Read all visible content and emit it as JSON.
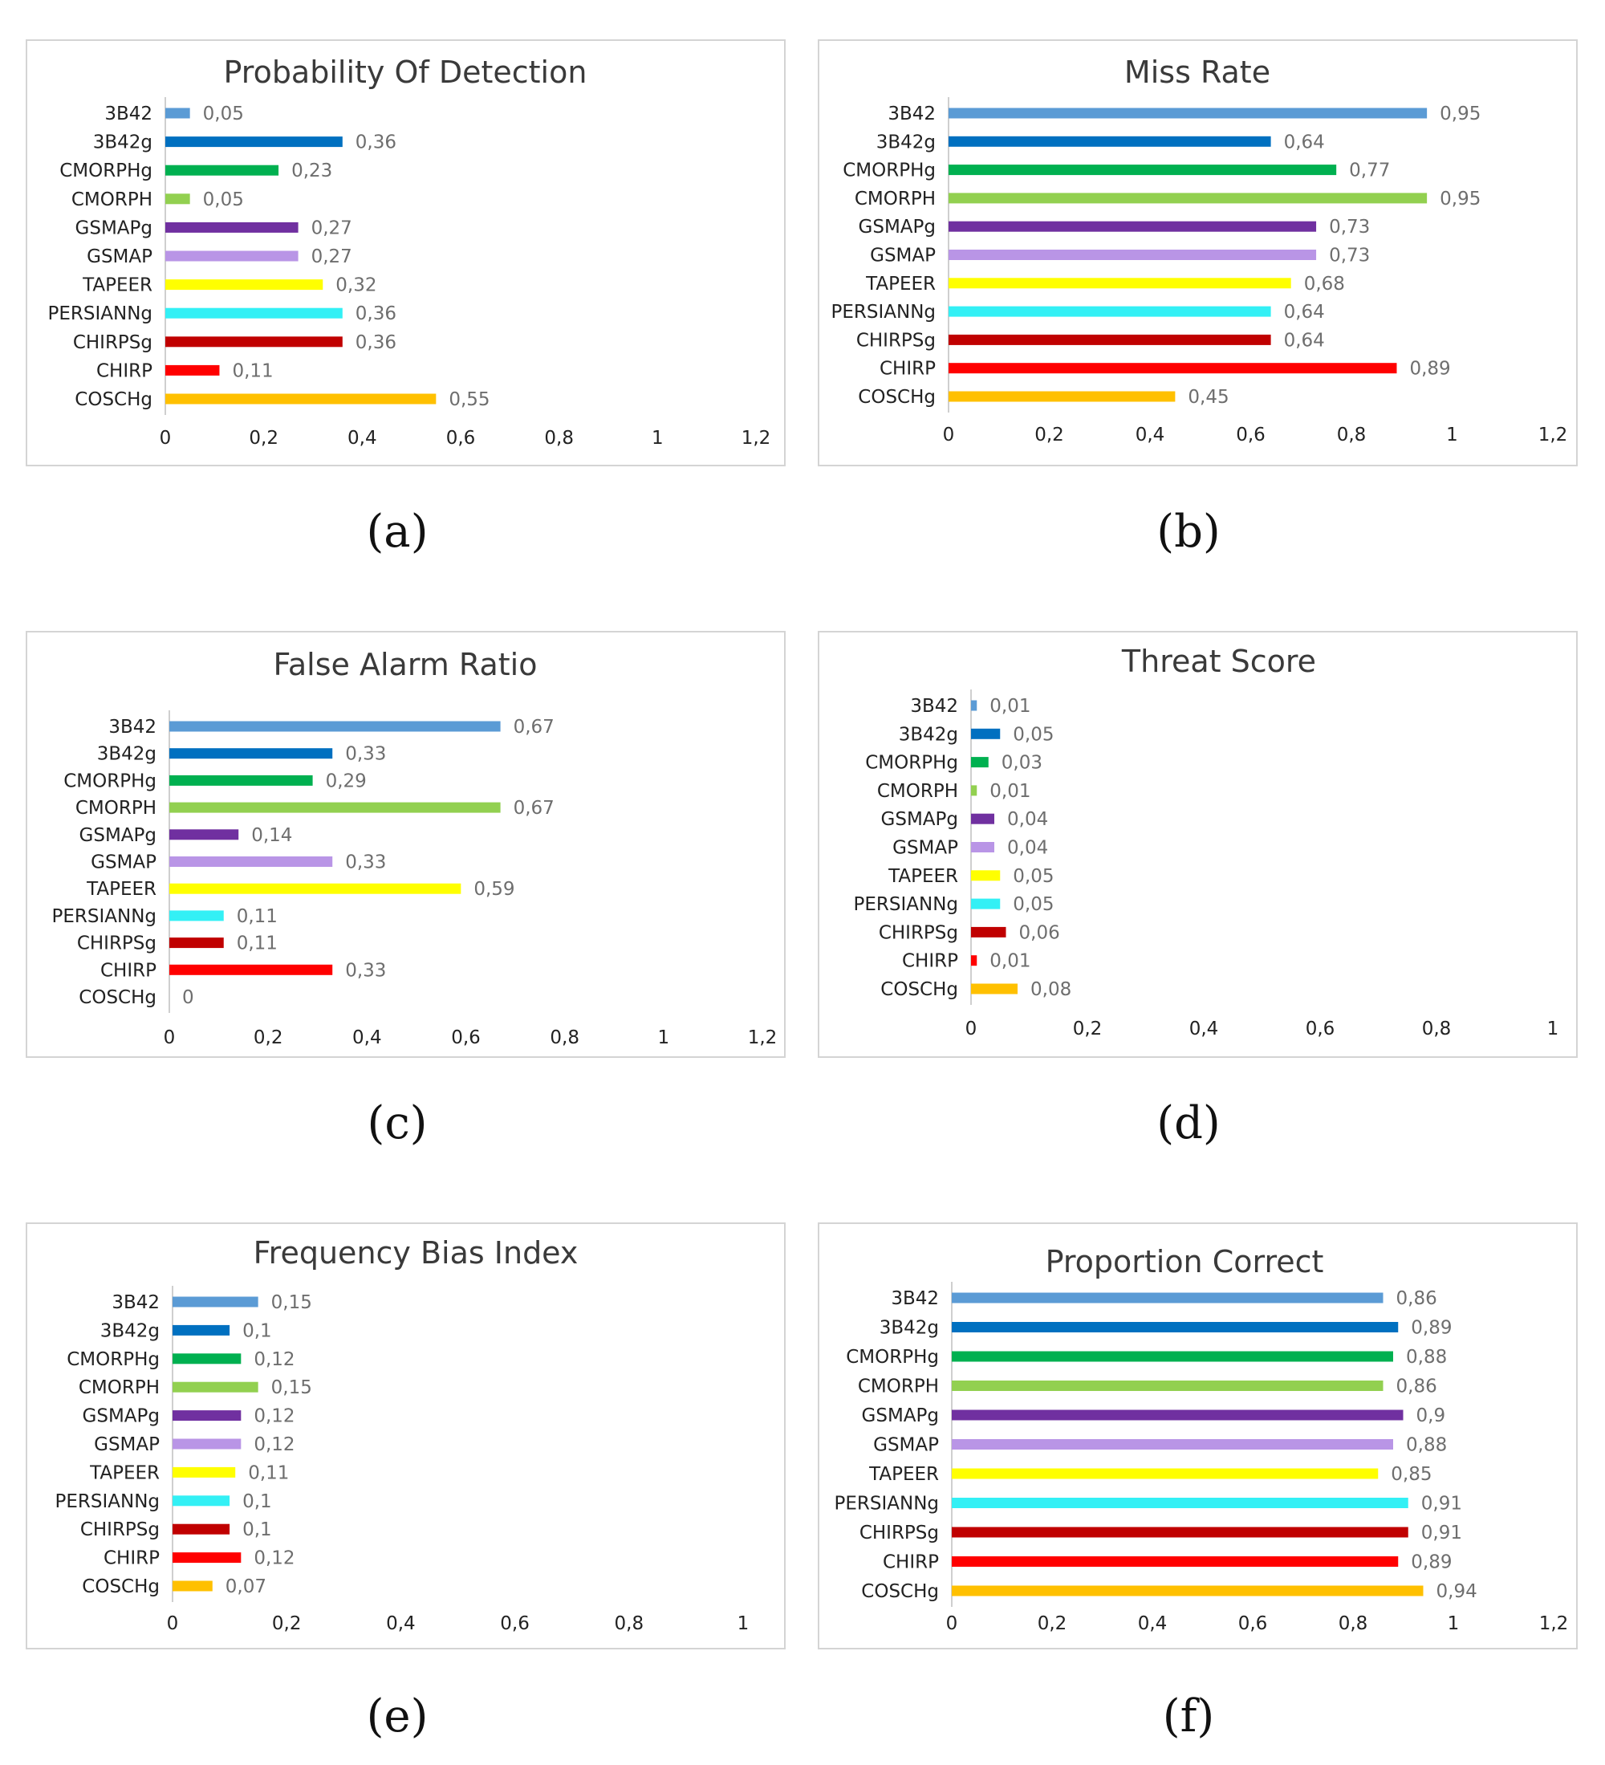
{
  "colors": [
    "#5b9bd5",
    "#0070c0",
    "#00b050",
    "#92d050",
    "#7030a0",
    "#b995e6",
    "#ffff00",
    "#33f0f5",
    "#c00000",
    "#ff0000",
    "#ffc000"
  ],
  "chart_data": [
    {
      "type": "bar",
      "orientation": "horizontal",
      "caption": "(a)",
      "title": "Probability Of Detection",
      "categories": [
        "3B42",
        "3B42g",
        "CMORPHg",
        "CMORPH",
        "GSMAPg",
        "GSMAP",
        "TAPEER",
        "PERSIANNg",
        "CHIRPSg",
        "CHIRP",
        "COSCHg"
      ],
      "values": [
        0.05,
        0.36,
        0.23,
        0.05,
        0.27,
        0.27,
        0.32,
        0.36,
        0.36,
        0.11,
        0.55
      ],
      "value_labels": [
        "0,05",
        "0,36",
        "0,23",
        "0,05",
        "0,27",
        "0,27",
        "0,32",
        "0,36",
        "0,36",
        "0,11",
        "0,55"
      ],
      "xlim": [
        0,
        1.2
      ],
      "ticks": [
        0,
        0.2,
        0.4,
        0.6,
        0.8,
        1,
        1.2
      ],
      "tick_labels": [
        "0",
        "0,2",
        "0,4",
        "0,6",
        "0,8",
        "1",
        "1,2"
      ],
      "grid": false
    },
    {
      "type": "bar",
      "orientation": "horizontal",
      "caption": "(b)",
      "title": "Miss Rate",
      "categories": [
        "3B42",
        "3B42g",
        "CMORPHg",
        "CMORPH",
        "GSMAPg",
        "GSMAP",
        "TAPEER",
        "PERSIANNg",
        "CHIRPSg",
        "CHIRP",
        "COSCHg"
      ],
      "values": [
        0.95,
        0.64,
        0.77,
        0.95,
        0.73,
        0.73,
        0.68,
        0.64,
        0.64,
        0.89,
        0.45
      ],
      "value_labels": [
        "0,95",
        "0,64",
        "0,77",
        "0,95",
        "0,73",
        "0,73",
        "0,68",
        "0,64",
        "0,64",
        "0,89",
        "0,45"
      ],
      "xlim": [
        0,
        1.2
      ],
      "ticks": [
        0,
        0.2,
        0.4,
        0.6,
        0.8,
        1,
        1.2
      ],
      "tick_labels": [
        "0",
        "0,2",
        "0,4",
        "0,6",
        "0,8",
        "1",
        "1,2"
      ],
      "grid": false
    },
    {
      "type": "bar",
      "orientation": "horizontal",
      "caption": "(c)",
      "title": "False Alarm Ratio",
      "categories": [
        "3B42",
        "3B42g",
        "CMORPHg",
        "CMORPH",
        "GSMAPg",
        "GSMAP",
        "TAPEER",
        "PERSIANNg",
        "CHIRPSg",
        "CHIRP",
        "COSCHg"
      ],
      "values": [
        0.67,
        0.33,
        0.29,
        0.67,
        0.14,
        0.33,
        0.59,
        0.11,
        0.11,
        0.33,
        0
      ],
      "value_labels": [
        "0,67",
        "0,33",
        "0,29",
        "0,67",
        "0,14",
        "0,33",
        "0,59",
        "0,11",
        "0,11",
        "0,33",
        "0"
      ],
      "xlim": [
        0,
        1.2
      ],
      "ticks": [
        0,
        0.2,
        0.4,
        0.6,
        0.8,
        1,
        1.2
      ],
      "tick_labels": [
        "0",
        "0,2",
        "0,4",
        "0,6",
        "0,8",
        "1",
        "1,2"
      ],
      "grid": false
    },
    {
      "type": "bar",
      "orientation": "horizontal",
      "caption": "(d)",
      "title": "Threat Score",
      "categories": [
        "3B42",
        "3B42g",
        "CMORPHg",
        "CMORPH",
        "GSMAPg",
        "GSMAP",
        "TAPEER",
        "PERSIANNg",
        "CHIRPSg",
        "CHIRP",
        "COSCHg"
      ],
      "values": [
        0.01,
        0.05,
        0.03,
        0.01,
        0.04,
        0.04,
        0.05,
        0.05,
        0.06,
        0.01,
        0.08
      ],
      "value_labels": [
        "0,01",
        "0,05",
        "0,03",
        "0,01",
        "0,04",
        "0,04",
        "0,05",
        "0,05",
        "0,06",
        "0,01",
        "0,08"
      ],
      "xlim": [
        0,
        1
      ],
      "ticks": [
        0,
        0.2,
        0.4,
        0.6,
        0.8,
        1
      ],
      "tick_labels": [
        "0",
        "0,2",
        "0,4",
        "0,6",
        "0,8",
        "1"
      ],
      "grid": false
    },
    {
      "type": "bar",
      "orientation": "horizontal",
      "caption": "(e)",
      "title": "Frequency Bias Index",
      "categories": [
        "3B42",
        "3B42g",
        "CMORPHg",
        "CMORPH",
        "GSMAPg",
        "GSMAP",
        "TAPEER",
        "PERSIANNg",
        "CHIRPSg",
        "CHIRP",
        "COSCHg"
      ],
      "values": [
        0.15,
        0.1,
        0.12,
        0.15,
        0.12,
        0.12,
        0.11,
        0.1,
        0.1,
        0.12,
        0.07
      ],
      "value_labels": [
        "0,15",
        "0,1",
        "0,12",
        "0,15",
        "0,12",
        "0,12",
        "0,11",
        "0,1",
        "0,1",
        "0,12",
        "0,07"
      ],
      "xlim": [
        0,
        1
      ],
      "ticks": [
        0,
        0.2,
        0.4,
        0.6,
        0.8,
        1
      ],
      "tick_labels": [
        "0",
        "0,2",
        "0,4",
        "0,6",
        "0,8",
        "1"
      ],
      "grid": false
    },
    {
      "type": "bar",
      "orientation": "horizontal",
      "caption": "(f)",
      "title": "Proportion Correct",
      "categories": [
        "3B42",
        "3B42g",
        "CMORPHg",
        "CMORPH",
        "GSMAPg",
        "GSMAP",
        "TAPEER",
        "PERSIANNg",
        "CHIRPSg",
        "CHIRP",
        "COSCHg"
      ],
      "values": [
        0.86,
        0.89,
        0.88,
        0.86,
        0.9,
        0.88,
        0.85,
        0.91,
        0.91,
        0.89,
        0.94
      ],
      "value_labels": [
        "0,86",
        "0,89",
        "0,88",
        "0,86",
        "0,9",
        "0,88",
        "0,85",
        "0,91",
        "0,91",
        "0,89",
        "0,94"
      ],
      "xlim": [
        0,
        1.2
      ],
      "ticks": [
        0,
        0.2,
        0.4,
        0.6,
        0.8,
        1,
        1.2
      ],
      "tick_labels": [
        "0",
        "0,2",
        "0,4",
        "0,6",
        "0,8",
        "1",
        "1,2"
      ],
      "grid": false
    }
  ]
}
